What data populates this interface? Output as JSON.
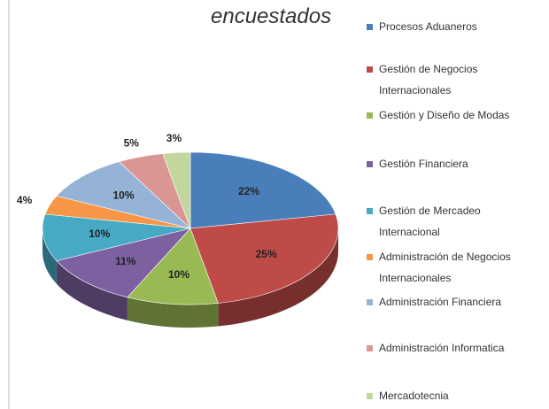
{
  "chart_data": {
    "type": "pie",
    "title": "encuestados",
    "categories": [
      "Procesos Aduaneros",
      "Gestión de Negocios Internacionales",
      "Gestión y Diseño de Modas",
      "Gestión Financiera",
      "Gestión de Mercadeo Internacional",
      "Administración de Negocios Internacionales",
      "Administración Financiera",
      "Administración Informatica",
      "Mercadotecnia"
    ],
    "values": [
      22,
      25,
      10,
      11,
      10,
      4,
      10,
      5,
      3
    ],
    "value_labels": [
      "22%",
      "25%",
      "10%",
      "11%",
      "10%",
      "4%",
      "10%",
      "5%",
      "3%"
    ],
    "colors": [
      "#4a7ebb",
      "#be4b48",
      "#98b954",
      "#7d60a0",
      "#46aac5",
      "#f79646",
      "#95b3d7",
      "#d99694",
      "#c3d69b"
    ],
    "legend": "right"
  }
}
